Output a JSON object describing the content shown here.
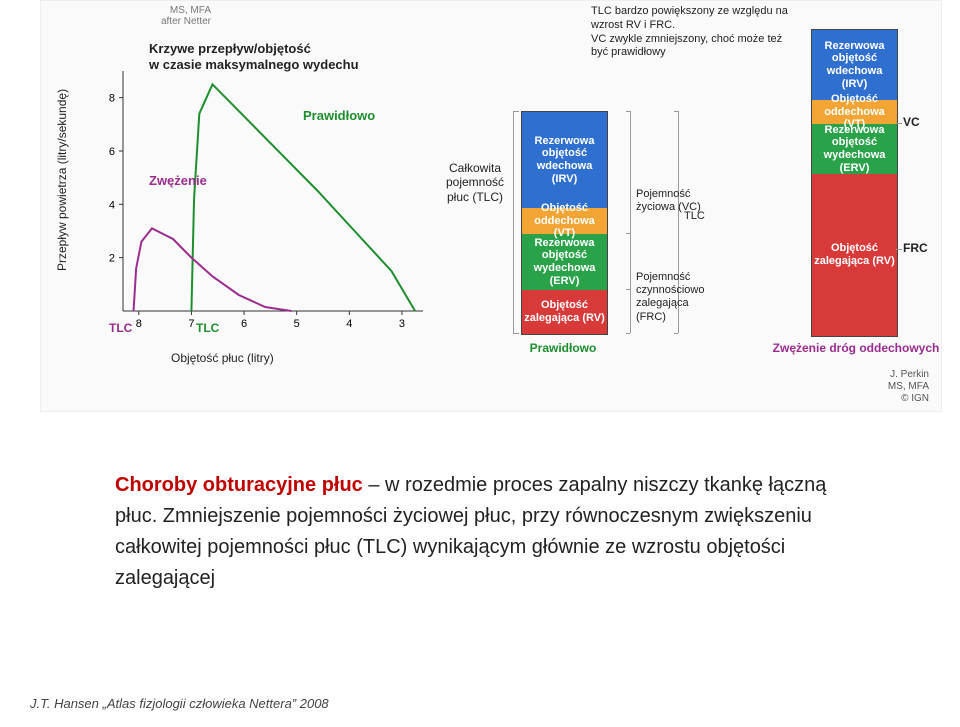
{
  "figure": {
    "attributionTopLine1": "MS, MFA",
    "attributionTopLine2": "after Netter",
    "curves_title": "Krzywe przepływ/objętość\nw czasie maksymalnego wydechu",
    "ylabel": "Przepływ powietrza (litry/sekundę)",
    "xlabel": "Objętość płuc (litry)",
    "normal_label": "Prawidłowo",
    "constriction_label": "Zwężenie",
    "tlc_purple": "TLC",
    "tlc_green": "TLC",
    "tlc_column": "Całkowita pojemność płuc (TLC)",
    "curves": {
      "grid_color": "#d9d9d9",
      "axis_color": "#333",
      "yticks": [
        2,
        4,
        6,
        8
      ],
      "xticks": [
        8,
        7,
        6,
        5,
        4,
        3
      ],
      "xlim": [
        8.3,
        2.6
      ],
      "ylim": [
        0,
        9
      ],
      "normal": {
        "color": "#1e8f2e",
        "width": 2,
        "pts": [
          [
            7.0,
            0
          ],
          [
            6.95,
            4.2
          ],
          [
            6.85,
            7.4
          ],
          [
            6.6,
            8.5
          ],
          [
            6.0,
            7.3
          ],
          [
            5.3,
            5.9
          ],
          [
            4.6,
            4.5
          ],
          [
            3.9,
            3.0
          ],
          [
            3.2,
            1.5
          ],
          [
            2.75,
            0
          ]
        ]
      },
      "obstructed": {
        "color": "#9a2d8f",
        "width": 2,
        "pts": [
          [
            8.1,
            0
          ],
          [
            8.05,
            1.6
          ],
          [
            7.95,
            2.6
          ],
          [
            7.75,
            3.1
          ],
          [
            7.35,
            2.7
          ],
          [
            7.0,
            2.0
          ],
          [
            6.6,
            1.3
          ],
          [
            6.1,
            0.6
          ],
          [
            5.6,
            0.15
          ],
          [
            5.1,
            0
          ]
        ]
      }
    },
    "bars": {
      "normal": {
        "caption": "Prawidłowo",
        "caption_color": "#1e8f2e",
        "segments": [
          {
            "label": "Rezerwowa objętość wdechowa (IRV)",
            "h": 96,
            "bg": "#2f6fd0"
          },
          {
            "label": "Objętość oddechowa (VT)",
            "h": 26,
            "bg": "#f2a534"
          },
          {
            "label": "Rezerwowa objętość wydechowa (ERV)",
            "h": 56,
            "bg": "#2aa24a"
          },
          {
            "label": "Objętość zalegająca (RV)",
            "h": 44,
            "bg": "#d83a3a"
          }
        ],
        "brackets": [
          {
            "text": "TLC",
            "from": 0,
            "to": 222,
            "side": "right",
            "off": 68
          },
          {
            "text": "Pojemność życiowa (VC)",
            "from": 0,
            "to": 178,
            "side": "right",
            "off": 20
          },
          {
            "text": "Pojemność czynnościowo zalegająca (FRC)",
            "from": 122,
            "to": 222,
            "side": "right",
            "off": 20
          }
        ]
      },
      "obstructed": {
        "caption": "Zwężenie dróg oddechowych",
        "caption_color": "#9a2d8f",
        "topnote": "TLC bardzo powiększony ze względu na wzrost RV i FRC.\nVC zwykle zmniejszony, choć może też być prawidłowy",
        "segments": [
          {
            "label": "Rezerwowa objętość wdechowa (IRV)",
            "h": 70,
            "bg": "#2f6fd0"
          },
          {
            "label": "Objętość oddechowa (VT)",
            "h": 24,
            "bg": "#f2a534"
          },
          {
            "label": "Rezerwowa objętość wydechowa (ERV)",
            "h": 50,
            "bg": "#2aa24a"
          },
          {
            "label": "Objętość zalegająca (RV)",
            "h": 162,
            "bg": "#d83a3a"
          }
        ],
        "right_caps": [
          {
            "text": "VC",
            "at": 94
          },
          {
            "text": "FRC",
            "at": 220
          }
        ]
      }
    },
    "attributionBottom": "J. Perkin\nMS, MFA\n© IGN"
  },
  "body": {
    "lead": "Choroby obturacyjne płuc",
    "rest": " – w rozedmie proces zapalny niszczy tkankę łączną płuc. Zmniejszenie pojemności życiowej płuc, przy równoczesnym zwiększeniu całkowitej pojemności płuc (TLC) wynikającym głównie ze wzrostu objętości zalegającej"
  },
  "footer": "J.T. Hansen „Atlas fizjologii człowieka Nettera” 2008"
}
